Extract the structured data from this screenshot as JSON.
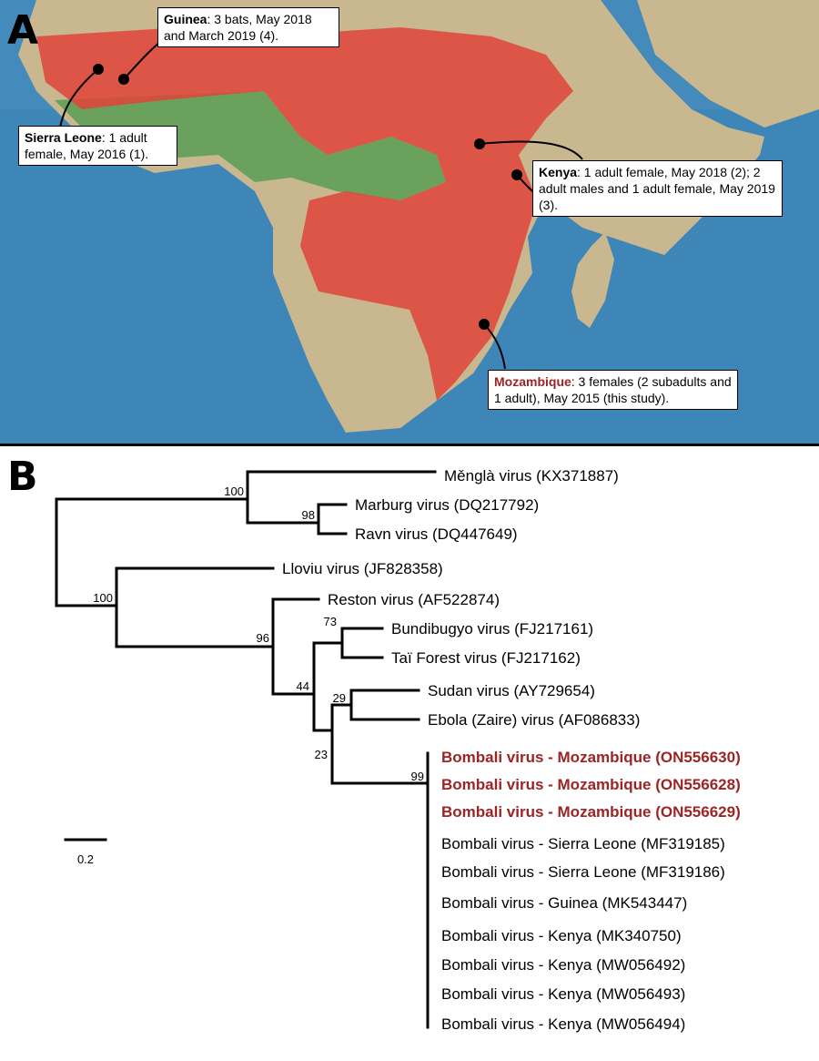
{
  "panel_a": {
    "letter": "A",
    "callouts": {
      "guinea": {
        "country": "Guinea",
        "text": ": 3 bats, May 2018 and March 2019 (4)."
      },
      "sierra_leone": {
        "country": "Sierra Leone",
        "text": ": 1 adult female, May 2016 (1)."
      },
      "kenya": {
        "country": "Kenya",
        "text": ": 1 adult female, May 2018 (2); 2 adult males and 1 adult female, May 2019 (3)."
      },
      "mozambique": {
        "country": "Mozambique",
        "text": ": 3 females (2 subadults and 1 adult), May 2015 (this study)."
      }
    },
    "colors": {
      "ocean": "#3f86b8",
      "land": "#c9b78f",
      "range": "#e0443a",
      "forest": "#5f9e58",
      "highlight": "#9b2424"
    }
  },
  "panel_b": {
    "letter": "B",
    "scale_label": "0.2",
    "tips": [
      "Měnglà virus (KX371887)",
      "Marburg virus (DQ217792)",
      "Ravn virus (DQ447649)",
      "Lloviu virus (JF828358)",
      "Reston virus (AF522874)",
      "Bundibugyo virus (FJ217161)",
      "Taï Forest virus (FJ217162)",
      "Sudan virus (AY729654)",
      "Ebola (Zaire) virus (AF086833)",
      "Bombali virus - Mozambique (ON556630)",
      "Bombali virus - Mozambique (ON556628)",
      "Bombali virus - Mozambique (ON556629)",
      "Bombali virus - Sierra Leone (MF319185)",
      "Bombali virus - Sierra Leone (MF319186)",
      "Bombali virus - Guinea (MK543447)",
      "Bombali virus - Kenya (MK340750)",
      "Bombali virus - Kenya (MW056492)",
      "Bombali virus - Kenya (MW056493)",
      "Bombali virus - Kenya (MW056494)"
    ],
    "highlighted_tips": [
      9,
      10,
      11
    ],
    "bootstrap": [
      "100",
      "98",
      "100",
      "96",
      "73",
      "44",
      "29",
      "23",
      "99"
    ]
  }
}
